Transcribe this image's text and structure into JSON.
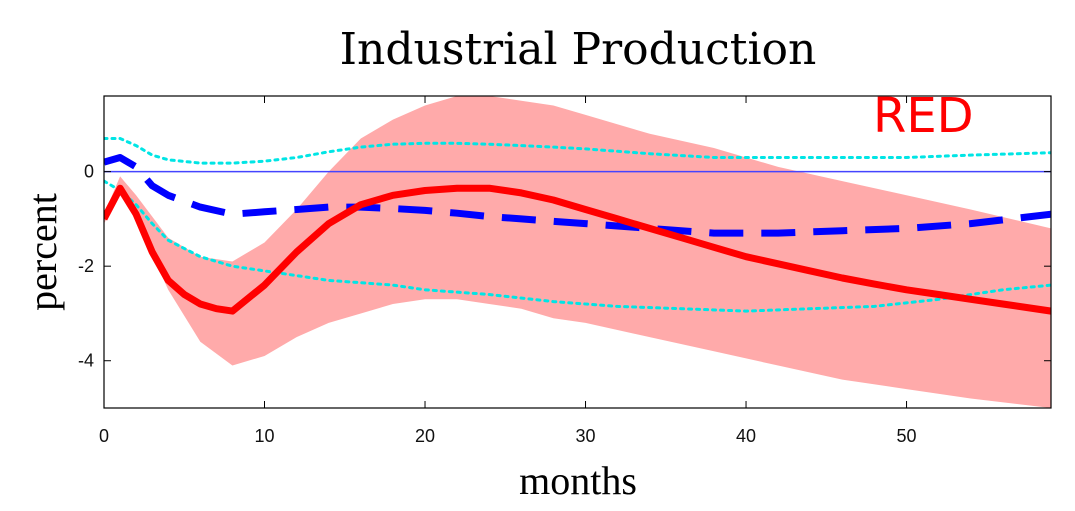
{
  "chart_data": {
    "type": "line",
    "title": "Industrial Production",
    "xlabel": "months",
    "ylabel": "percent",
    "xlim": [
      0,
      59
    ],
    "ylim": [
      -5,
      1.6
    ],
    "xticks": [
      0,
      10,
      20,
      30,
      40,
      50
    ],
    "yticks": [
      0,
      -2,
      -4
    ],
    "grid": false,
    "annotation": "RED",
    "band": {
      "color": "#ffaaaa",
      "x": [
        0,
        1,
        2,
        4,
        6,
        8,
        10,
        12,
        14,
        16,
        18,
        20,
        22,
        24,
        26,
        28,
        30,
        34,
        38,
        42,
        46,
        50,
        54,
        59
      ],
      "upper": [
        -0.9,
        -0.1,
        -0.5,
        -1.4,
        -1.8,
        -1.9,
        -1.5,
        -0.8,
        0,
        0.7,
        1.1,
        1.4,
        1.6,
        1.6,
        1.5,
        1.4,
        1.2,
        0.8,
        0.5,
        0.1,
        -0.2,
        -0.5,
        -0.8,
        -1.2
      ],
      "lower": [
        -1.1,
        -0.5,
        -1.0,
        -2.5,
        -3.6,
        -4.1,
        -3.9,
        -3.5,
        -3.2,
        -3.0,
        -2.8,
        -2.7,
        -2.7,
        -2.8,
        -2.9,
        -3.1,
        -3.2,
        -3.5,
        -3.8,
        -4.1,
        -4.4,
        -4.6,
        -4.8,
        -5.0
      ]
    },
    "series": [
      {
        "color": "#ff0000",
        "style": "solid",
        "x": [
          0,
          1,
          2,
          3,
          4,
          5,
          6,
          7,
          8,
          10,
          12,
          14,
          16,
          18,
          20,
          22,
          24,
          26,
          28,
          30,
          32,
          34,
          36,
          38,
          40,
          42,
          44,
          46,
          48,
          50,
          52,
          54,
          56,
          59
        ],
        "values": [
          -1.0,
          -0.35,
          -0.9,
          -1.7,
          -2.3,
          -2.6,
          -2.8,
          -2.9,
          -2.95,
          -2.4,
          -1.7,
          -1.1,
          -0.7,
          -0.5,
          -0.4,
          -0.35,
          -0.35,
          -0.45,
          -0.6,
          -0.8,
          -1.0,
          -1.2,
          -1.4,
          -1.6,
          -1.8,
          -1.95,
          -2.1,
          -2.25,
          -2.38,
          -2.5,
          -2.6,
          -2.7,
          -2.8,
          -2.95
        ]
      },
      {
        "color": "#0000ff",
        "style": "dashed",
        "x": [
          0,
          1,
          2,
          3,
          4,
          6,
          8,
          10,
          12,
          14,
          16,
          18,
          20,
          22,
          24,
          26,
          28,
          30,
          34,
          38,
          42,
          46,
          50,
          54,
          59
        ],
        "values": [
          0.2,
          0.3,
          0.1,
          -0.3,
          -0.5,
          -0.75,
          -0.9,
          -0.85,
          -0.8,
          -0.75,
          -0.75,
          -0.78,
          -0.82,
          -0.88,
          -0.95,
          -1.0,
          -1.05,
          -1.1,
          -1.2,
          -1.3,
          -1.3,
          -1.25,
          -1.2,
          -1.1,
          -0.9
        ]
      },
      {
        "color": "#00e5e5",
        "style": "dotted",
        "x": [
          0,
          1,
          2,
          3,
          4,
          6,
          8,
          10,
          12,
          14,
          16,
          18,
          20,
          22,
          24,
          26,
          28,
          30,
          34,
          38,
          42,
          46,
          50,
          54,
          59
        ],
        "values": [
          0.7,
          0.7,
          0.55,
          0.35,
          0.25,
          0.18,
          0.18,
          0.22,
          0.3,
          0.42,
          0.52,
          0.58,
          0.6,
          0.6,
          0.58,
          0.55,
          0.52,
          0.48,
          0.38,
          0.3,
          0.3,
          0.3,
          0.3,
          0.35,
          0.4
        ]
      },
      {
        "color": "#00e5e5",
        "style": "dotted",
        "x": [
          0,
          1,
          2,
          3,
          4,
          6,
          8,
          10,
          12,
          14,
          16,
          18,
          20,
          24,
          28,
          32,
          36,
          40,
          44,
          48,
          52,
          56,
          59
        ],
        "values": [
          -0.2,
          -0.4,
          -0.7,
          -1.1,
          -1.45,
          -1.8,
          -2.0,
          -2.1,
          -2.2,
          -2.3,
          -2.35,
          -2.4,
          -2.5,
          -2.6,
          -2.75,
          -2.85,
          -2.9,
          -2.95,
          -2.9,
          -2.85,
          -2.7,
          -2.5,
          -2.4
        ]
      }
    ]
  }
}
